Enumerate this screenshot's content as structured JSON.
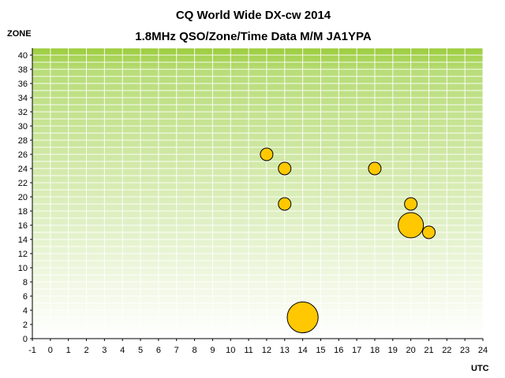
{
  "chart_data": {
    "type": "scatter",
    "subtype": "bubble",
    "title": "CQ World Wide DX-cw 2014",
    "subtitle": "1.8MHz QSO/Zone/Time Data M/M JA1YPA",
    "xlabel": "UTC",
    "ylabel": "ZONE",
    "xlim": [
      -1,
      24
    ],
    "ylim": [
      0,
      41
    ],
    "xticks": [
      "-1",
      "0",
      "1",
      "2",
      "3",
      "4",
      "5",
      "6",
      "7",
      "8",
      "9",
      "10",
      "11",
      "12",
      "13",
      "14",
      "15",
      "16",
      "17",
      "18",
      "19",
      "20",
      "21",
      "22",
      "23",
      "24"
    ],
    "yticks": [
      "0",
      "2",
      "4",
      "6",
      "8",
      "10",
      "12",
      "14",
      "16",
      "18",
      "20",
      "22",
      "24",
      "26",
      "28",
      "30",
      "32",
      "34",
      "36",
      "38",
      "40"
    ],
    "grid": true,
    "background_gradient": [
      "#9ccc3c",
      "#ffffff"
    ],
    "bubble_color": "#ffc800",
    "bubble_border": "#000000",
    "points": [
      {
        "x": 12,
        "y": 26,
        "size": 1
      },
      {
        "x": 13,
        "y": 24,
        "size": 1
      },
      {
        "x": 13,
        "y": 19,
        "size": 1
      },
      {
        "x": 18,
        "y": 24,
        "size": 1
      },
      {
        "x": 20,
        "y": 19,
        "size": 1
      },
      {
        "x": 20,
        "y": 16,
        "size": 4
      },
      {
        "x": 21,
        "y": 15,
        "size": 1
      },
      {
        "x": 14,
        "y": 3,
        "size": 6
      }
    ]
  }
}
